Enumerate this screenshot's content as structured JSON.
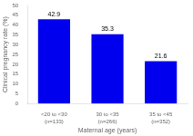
{
  "chart_data": {
    "type": "bar",
    "categories": [
      "<20 to <30\n(n=133)",
      "30 to <35\n(n=266)",
      "35 to <45\n(n=352)"
    ],
    "values": [
      42.9,
      35.3,
      21.6
    ],
    "color": "#0000EE",
    "xlabel": "Maternal age (years)",
    "ylabel": "Clinical pregnancy rate (%)",
    "ylim": [
      0,
      50
    ],
    "yticks": [
      0,
      5,
      10,
      15,
      20,
      25,
      30,
      35,
      40,
      45,
      50
    ],
    "grid": false,
    "data_labels": true
  }
}
